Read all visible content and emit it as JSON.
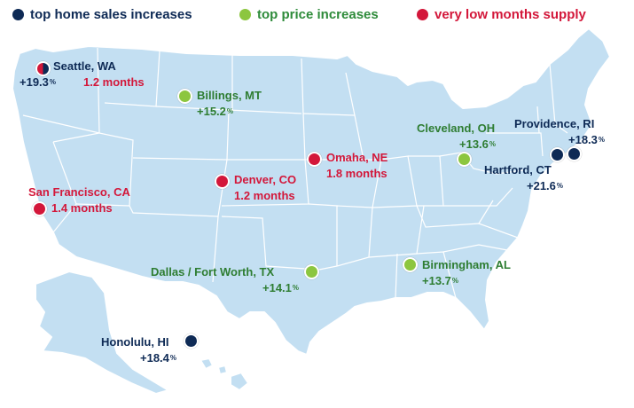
{
  "legend": {
    "sales": {
      "label": "top home sales increases",
      "color": "#0e2a55"
    },
    "price": {
      "label": "top price increases",
      "color": "#8cc63f"
    },
    "supply": {
      "label": "very low months supply",
      "color": "#d3173a"
    }
  },
  "map": {
    "land_color": "#c3dff2",
    "border_color": "#8fa9bf"
  },
  "cities": {
    "seattle": {
      "name": "Seattle, WA",
      "stat_sales": "+19.3",
      "stat_supply": "1.2 months"
    },
    "billings": {
      "name": "Billings, MT",
      "stat": "+15.2"
    },
    "omaha": {
      "name": "Omaha, NE",
      "stat": "1.8 months"
    },
    "denver": {
      "name": "Denver, CO",
      "stat": "1.2 months"
    },
    "san_francisco": {
      "name": "San Francisco, CA",
      "stat": "1.4 months"
    },
    "cleveland": {
      "name": "Cleveland, OH",
      "stat": "+13.6"
    },
    "providence": {
      "name": "Providence, RI",
      "stat": "+18.3"
    },
    "hartford": {
      "name": "Hartford, CT",
      "stat": "+21.6"
    },
    "dallas": {
      "name": "Dallas / Fort Worth, TX",
      "stat": "+14.1"
    },
    "birmingham": {
      "name": "Birmingham, AL",
      "stat": "+13.7"
    },
    "honolulu": {
      "name": "Honolulu, HI",
      "stat": "+18.4"
    }
  },
  "percent_symbol": "%"
}
